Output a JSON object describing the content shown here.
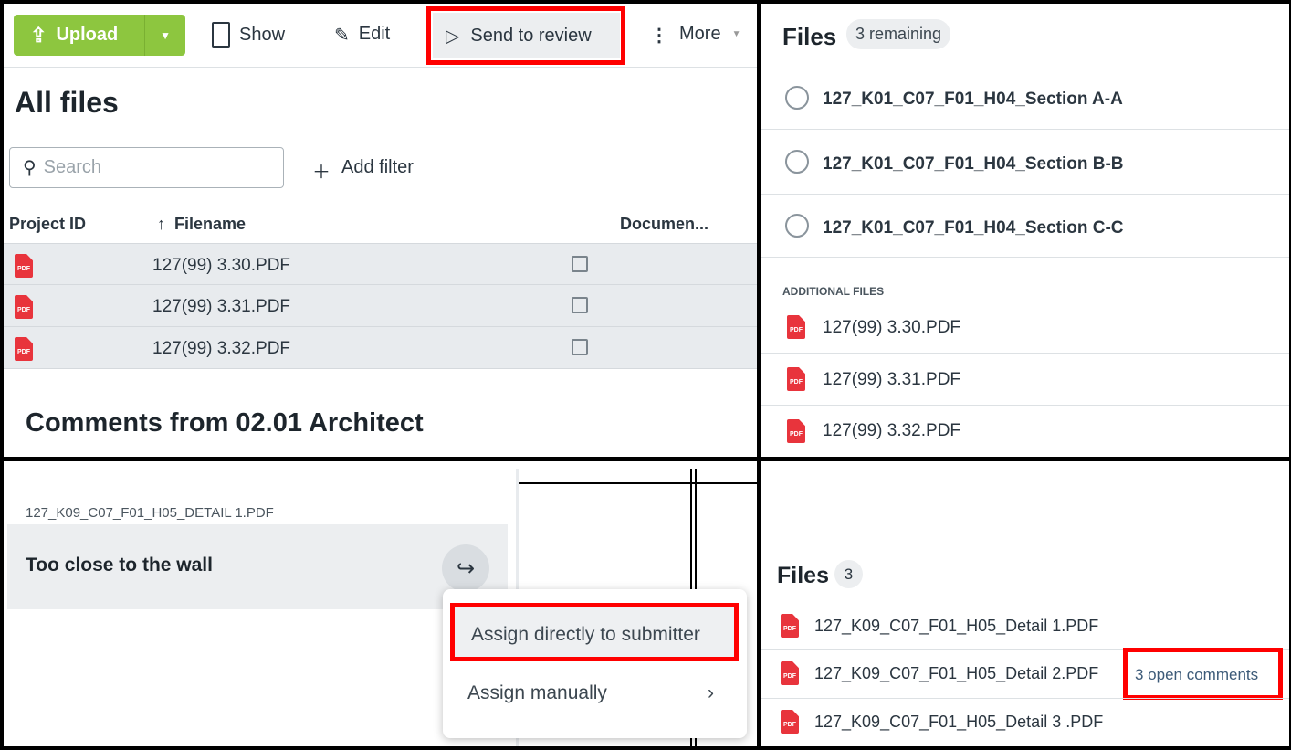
{
  "toolbar": {
    "upload": "Upload",
    "show": "Show",
    "edit": "Edit",
    "send_to_review": "Send to review",
    "more": "More"
  },
  "all_files": {
    "title": "All files",
    "search_placeholder": "Search",
    "add_filter": "Add filter",
    "columns": [
      "Project ID",
      "Filename",
      "Documen..."
    ],
    "rows": [
      {
        "filename": "127(99) 3.30.PDF"
      },
      {
        "filename": "127(99) 3.31.PDF"
      },
      {
        "filename": "127(99) 3.32.PDF"
      }
    ],
    "comments_title": "Comments from 02.01 Architect"
  },
  "review_files": {
    "title": "Files",
    "badge": "3 remaining",
    "files": [
      "127_K01_C07_F01_H04_Section A-A",
      "127_K01_C07_F01_H04_Section B-B",
      "127_K01_C07_F01_H04_Section C-C"
    ],
    "additional_label": "ADDITIONAL FILES",
    "additional": [
      "127(99) 3.30.PDF",
      "127(99) 3.31.PDF",
      "127(99) 3.32.PDF"
    ]
  },
  "comment": {
    "file": "127_K09_C07_F01_H05_DETAIL 1.PDF",
    "text": "Too close to the wall",
    "menu": [
      "Assign directly to submitter",
      "Assign manually"
    ]
  },
  "files2": {
    "title": "Files",
    "count": "3",
    "files": [
      "127_K09_C07_F01_H05_Detail 1.PDF",
      "127_K09_C07_F01_H05_Detail 2.PDF",
      "127_K09_C07_F01_H05_Detail 3 .PDF"
    ],
    "open_comments": "3 open comments"
  },
  "colors": {
    "upload_green": "#8dc63f",
    "highlight_red": "#ff0000",
    "pdf_red": "#e8343c"
  }
}
